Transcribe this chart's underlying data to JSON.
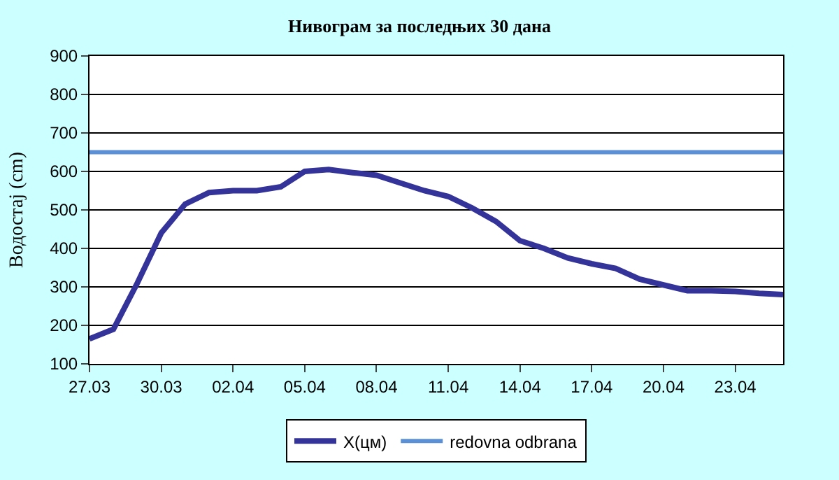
{
  "chart_data": {
    "type": "line",
    "title": "Нивограм за последњих 30 дана",
    "ylabel": "Водостај (cm)",
    "categories": [
      "27.03",
      null,
      null,
      "30.03",
      null,
      null,
      "02.04",
      null,
      null,
      "05.04",
      null,
      null,
      "08.04",
      null,
      null,
      "11.04",
      null,
      null,
      "14.04",
      null,
      null,
      "17.04",
      null,
      null,
      "20.04",
      null,
      null,
      "23.04",
      null,
      null
    ],
    "series": [
      {
        "name": "X(цм)",
        "color": "#333399",
        "values": [
          165,
          190,
          310,
          440,
          515,
          545,
          550,
          550,
          560,
          600,
          605,
          597,
          590,
          570,
          550,
          535,
          505,
          470,
          420,
          400,
          375,
          360,
          348,
          320,
          305,
          290,
          290,
          288,
          283,
          280
        ]
      }
    ],
    "ref_lines": [
      {
        "axis": "y",
        "value": 650,
        "label": "redovna odbrana",
        "color": "#5b8fd6"
      }
    ],
    "ylim": [
      100,
      900
    ],
    "yticks": [
      100,
      200,
      300,
      400,
      500,
      600,
      700,
      800,
      900
    ],
    "grid": "y",
    "legend": "bottom",
    "line_style": "solid",
    "marker": "none"
  }
}
